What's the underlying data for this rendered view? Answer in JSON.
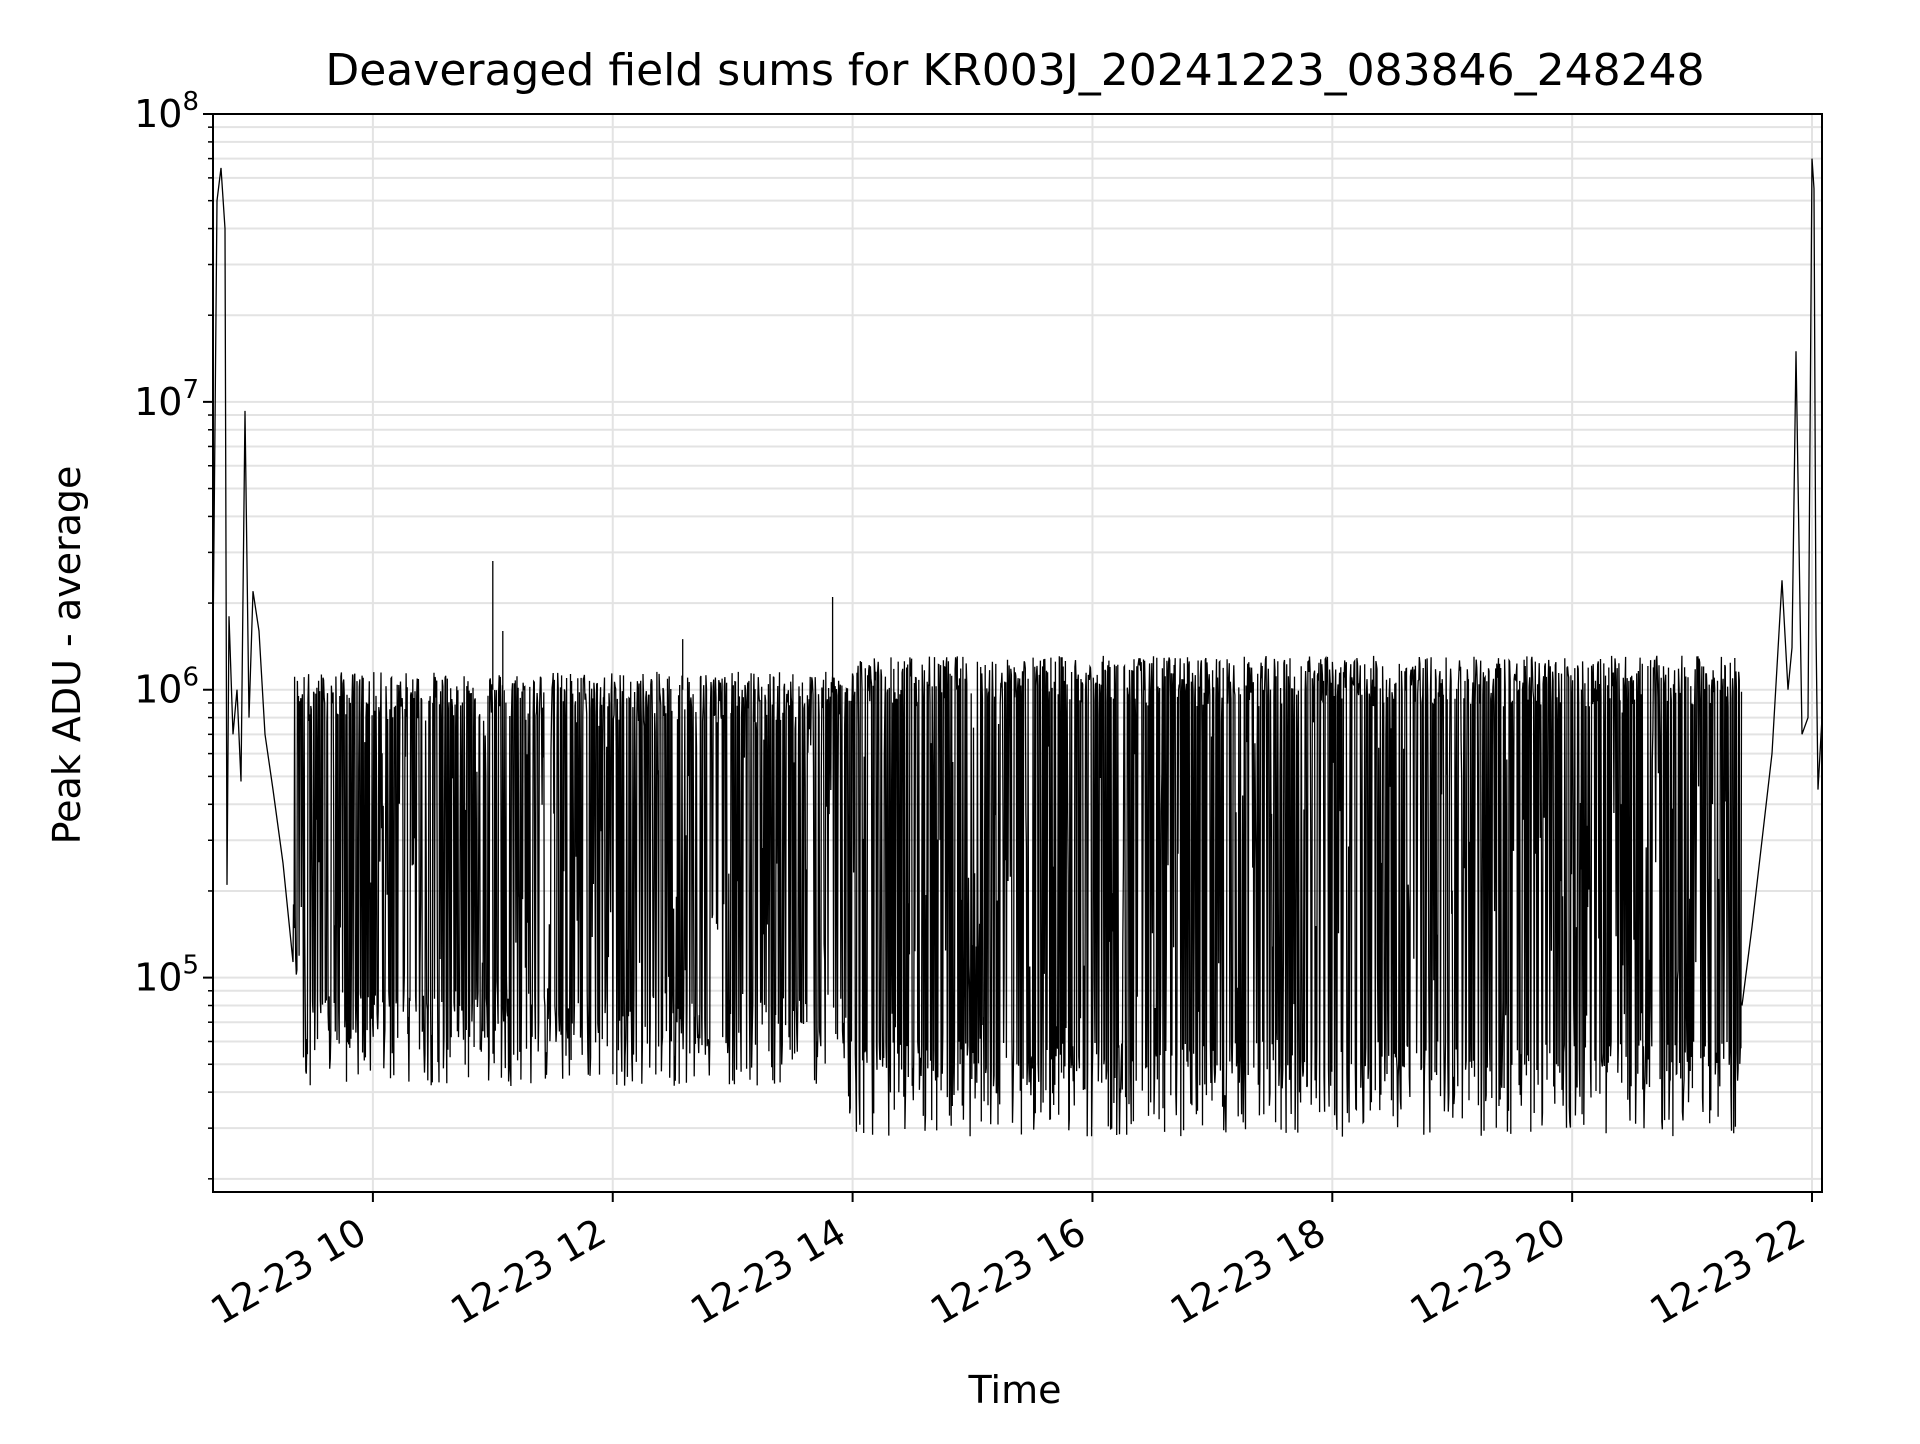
{
  "chart_data": {
    "type": "line",
    "title": "Deaveraged field sums for KR003J_20241223_083846_248248",
    "xlabel": "Time",
    "ylabel": "Peak ADU - average",
    "xscale": "time",
    "yscale": "log",
    "xlim": [
      "2024-12-23 08:40",
      "2024-12-23 22:05"
    ],
    "ylim": [
      18000,
      100000000
    ],
    "x_ticks": [
      {
        "value": "2024-12-23 10:00",
        "label": "12-23 10"
      },
      {
        "value": "2024-12-23 12:00",
        "label": "12-23 12"
      },
      {
        "value": "2024-12-23 14:00",
        "label": "12-23 14"
      },
      {
        "value": "2024-12-23 16:00",
        "label": "12-23 16"
      },
      {
        "value": "2024-12-23 18:00",
        "label": "12-23 18"
      },
      {
        "value": "2024-12-23 20:00",
        "label": "12-23 20"
      },
      {
        "value": "2024-12-23 22:00",
        "label": "12-23 22"
      }
    ],
    "y_ticks": [
      {
        "value": 100000,
        "base": "10",
        "exp": "5"
      },
      {
        "value": 1000000,
        "base": "10",
        "exp": "6"
      },
      {
        "value": 10000000,
        "base": "10",
        "exp": "7"
      },
      {
        "value": 100000000,
        "base": "10",
        "exp": "8"
      }
    ],
    "grid": true,
    "legend": "none",
    "line_color": "#000000",
    "series": [
      {
        "points": [
          [
            "2024-12-23 08:40",
            1400000
          ],
          [
            "2024-12-23 08:42",
            50000000
          ],
          [
            "2024-12-23 08:44",
            65000000
          ],
          [
            "2024-12-23 08:46",
            40000000
          ],
          [
            "2024-12-23 08:47",
            210000
          ],
          [
            "2024-12-23 08:48",
            1800000
          ],
          [
            "2024-12-23 08:50",
            700000
          ],
          [
            "2024-12-23 08:52",
            1000000
          ],
          [
            "2024-12-23 08:54",
            480000
          ],
          [
            "2024-12-23 08:56",
            9300000
          ],
          [
            "2024-12-23 08:58",
            800000
          ],
          [
            "2024-12-23 09:00",
            2200000
          ],
          [
            "2024-12-23 09:03",
            1600000
          ],
          [
            "2024-12-23 09:06",
            700000
          ],
          [
            "2024-12-23 09:10",
            450000
          ],
          [
            "2024-12-23 09:15",
            250000
          ],
          [
            "2024-12-23 09:20",
            180000
          ],
          [
            "2024-12-23 09:25",
            120000
          ],
          [
            "2024-12-23 09:30",
            65000
          ],
          [
            "2024-12-23 09:40",
            900000
          ],
          [
            "2024-12-23 09:50",
            45000
          ],
          [
            "2024-12-23 10:00",
            1050000
          ],
          [
            "2024-12-23 10:10",
            55000
          ],
          [
            "2024-12-23 10:20",
            1100000
          ],
          [
            "2024-12-23 10:30",
            42000
          ],
          [
            "2024-12-23 10:40",
            1100000
          ],
          [
            "2024-12-23 10:50",
            50000
          ],
          [
            "2024-12-23 11:00",
            2800000
          ],
          [
            "2024-12-23 11:05",
            1600000
          ],
          [
            "2024-12-23 11:10",
            45000
          ],
          [
            "2024-12-23 11:30",
            1050000
          ],
          [
            "2024-12-23 11:50",
            50000
          ],
          [
            "2024-12-23 12:00",
            1100000
          ],
          [
            "2024-12-23 12:20",
            60000
          ],
          [
            "2024-12-23 12:35",
            1500000
          ],
          [
            "2024-12-23 12:50",
            55000
          ],
          [
            "2024-12-23 13:10",
            1100000
          ],
          [
            "2024-12-23 13:30",
            65000
          ],
          [
            "2024-12-23 13:50",
            2100000
          ],
          [
            "2024-12-23 13:55",
            40000
          ],
          [
            "2024-12-23 14:10",
            30000
          ],
          [
            "2024-12-23 14:20",
            1200000
          ],
          [
            "2024-12-23 14:40",
            36000
          ],
          [
            "2024-12-23 15:00",
            1250000
          ],
          [
            "2024-12-23 15:20",
            38000
          ],
          [
            "2024-12-23 15:40",
            1200000
          ],
          [
            "2024-12-23 16:00",
            35000
          ],
          [
            "2024-12-23 16:20",
            1250000
          ],
          [
            "2024-12-23 16:40",
            26000
          ],
          [
            "2024-12-23 17:00",
            1250000
          ],
          [
            "2024-12-23 17:20",
            35000
          ],
          [
            "2024-12-23 17:40",
            1250000
          ],
          [
            "2024-12-23 18:00",
            34000
          ],
          [
            "2024-12-23 18:20",
            1250000
          ],
          [
            "2024-12-23 18:40",
            35000
          ],
          [
            "2024-12-23 19:00",
            1300000
          ],
          [
            "2024-12-23 19:20",
            36000
          ],
          [
            "2024-12-23 19:40",
            30000
          ],
          [
            "2024-12-23 20:00",
            1250000
          ],
          [
            "2024-12-23 20:20",
            40000
          ],
          [
            "2024-12-23 20:40",
            1300000
          ],
          [
            "2024-12-23 21:00",
            42000
          ],
          [
            "2024-12-23 21:15",
            45000
          ],
          [
            "2024-12-23 21:25",
            80000
          ],
          [
            "2024-12-23 21:30",
            150000
          ],
          [
            "2024-12-23 21:35",
            300000
          ],
          [
            "2024-12-23 21:40",
            600000
          ],
          [
            "2024-12-23 21:45",
            2400000
          ],
          [
            "2024-12-23 21:48",
            1000000
          ],
          [
            "2024-12-23 21:50",
            1400000
          ],
          [
            "2024-12-23 21:52",
            15000000
          ],
          [
            "2024-12-23 21:55",
            700000
          ],
          [
            "2024-12-23 21:58",
            800000
          ],
          [
            "2024-12-23 22:00",
            70000000
          ],
          [
            "2024-12-23 22:01",
            55000000
          ],
          [
            "2024-12-23 22:02",
            1600000
          ],
          [
            "2024-12-23 22:03",
            450000
          ],
          [
            "2024-12-23 22:05",
            800000
          ]
        ]
      }
    ]
  }
}
